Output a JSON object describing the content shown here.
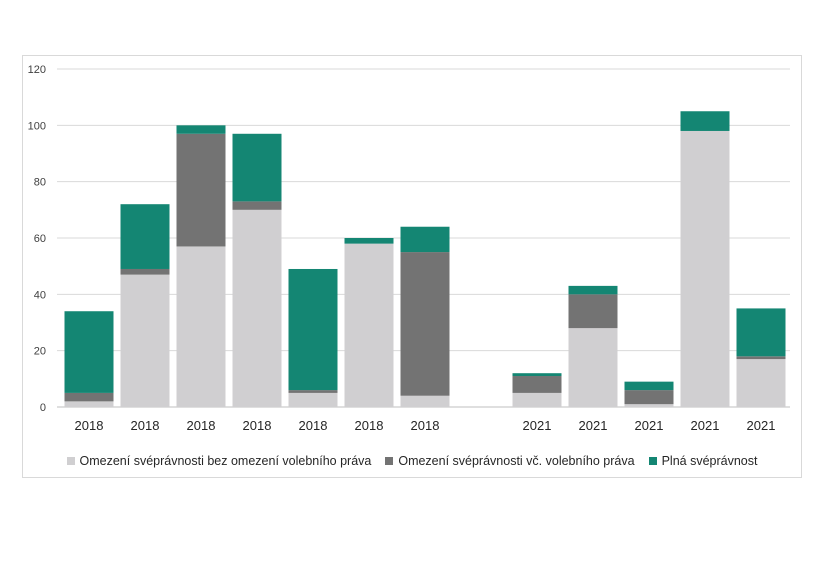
{
  "chart_data": {
    "type": "bar",
    "stacked": true,
    "title": "",
    "xlabel": "",
    "ylabel": "",
    "ylim": [
      0,
      120
    ],
    "yticks": [
      0,
      20,
      40,
      60,
      80,
      100,
      120
    ],
    "grid": true,
    "legend_position": "bottom",
    "groups": [
      {
        "categories": [
          "2018",
          "2018",
          "2018",
          "2018",
          "2018",
          "2018",
          "2018"
        ]
      },
      {
        "categories": [
          "2021",
          "2021",
          "2021",
          "2021",
          "2021"
        ]
      }
    ],
    "categories": [
      "2018",
      "2018",
      "2018",
      "2018",
      "2018",
      "2018",
      "2018",
      "2021",
      "2021",
      "2021",
      "2021",
      "2021"
    ],
    "series": [
      {
        "name": "Omezení svéprávnosti bez omezení volebního práva",
        "color": "#d0cfd1",
        "values": [
          2,
          47,
          57,
          70,
          5,
          58,
          4,
          5,
          28,
          1,
          98,
          17
        ]
      },
      {
        "name": "Omezení svéprávnosti vč. volebního práva",
        "color": "#737373",
        "values": [
          3,
          2,
          40,
          3,
          1,
          0,
          51,
          6,
          12,
          5,
          0,
          1
        ]
      },
      {
        "name": "Plná svéprávnost",
        "color": "#148673",
        "values": [
          29,
          23,
          3,
          24,
          43,
          2,
          9,
          1,
          3,
          3,
          7,
          17
        ]
      }
    ]
  }
}
